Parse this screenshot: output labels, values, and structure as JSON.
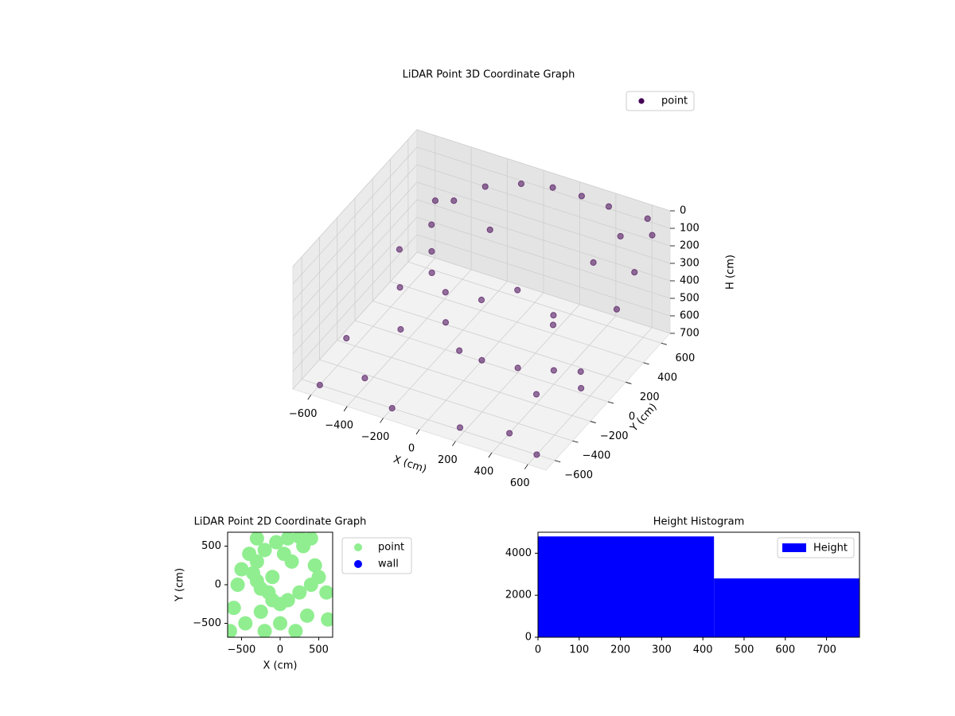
{
  "chart_data": [
    {
      "type": "scatter3d",
      "title": "LiDAR Point 3D Coordinate Graph",
      "xlabel": "X (cm)",
      "ylabel": "Y (cm)",
      "zlabel": "H (cm)",
      "xlim": [
        -700,
        700
      ],
      "ylim": [
        -700,
        700
      ],
      "zlim": [
        0,
        700
      ],
      "zinvert": true,
      "xticks": [
        {
          "value": -600,
          "label": "−600"
        },
        {
          "value": -400,
          "label": "−400"
        },
        {
          "value": -200,
          "label": "−200"
        },
        0,
        200,
        400,
        600
      ],
      "yticks": [
        {
          "value": -600,
          "label": "−600"
        },
        {
          "value": -400,
          "label": "−400"
        },
        {
          "value": -200,
          "label": "−200"
        },
        0,
        200,
        400,
        600
      ],
      "zticks": [
        0,
        100,
        200,
        300,
        400,
        500,
        600,
        700
      ],
      "grid": true,
      "legend": "upper right",
      "series": [
        {
          "name": "point",
          "color": "#440154",
          "x": [
            -300,
            -200,
            -50,
            100,
            250,
            400,
            -350,
            -300,
            -250,
            -150,
            -100,
            0,
            100,
            250,
            400,
            500,
            600,
            650,
            650,
            650,
            600,
            450,
            300,
            -600,
            -500,
            -400,
            -200,
            200,
            400,
            -650,
            -550,
            0,
            150,
            300,
            -100,
            500,
            600,
            -600,
            200,
            -300
          ],
          "y": [
            300,
            450,
            550,
            600,
            620,
            620,
            150,
            50,
            -50,
            -100,
            -200,
            -250,
            -200,
            -100,
            0,
            100,
            -100,
            200,
            400,
            600,
            650,
            650,
            650,
            -300,
            100,
            -500,
            -600,
            -650,
            -500,
            400,
            600,
            0,
            100,
            200,
            300,
            -400,
            -600,
            -600,
            400,
            -300
          ],
          "z": [
            50,
            20,
            10,
            10,
            20,
            30,
            120,
            200,
            250,
            300,
            400,
            500,
            550,
            600,
            620,
            650,
            600,
            300,
            200,
            100,
            50,
            200,
            400,
            600,
            500,
            650,
            700,
            650,
            700,
            500,
            300,
            350,
            300,
            450,
            150,
            500,
            700,
            700,
            650,
            450
          ]
        }
      ]
    },
    {
      "type": "scatter",
      "title": "LiDAR Point 2D Coordinate Graph",
      "xlabel": "X (cm)",
      "ylabel": "Y (cm)",
      "xlim": [
        -680,
        680
      ],
      "ylim": [
        -680,
        680
      ],
      "xticks": [
        {
          "value": -500,
          "label": "−500"
        },
        0,
        500
      ],
      "yticks": [
        {
          "value": -500,
          "label": "−500"
        },
        0,
        500
      ],
      "legend": "outside right",
      "series": [
        {
          "name": "point",
          "color": "#90ee90",
          "x": [
            -300,
            -200,
            -50,
            100,
            250,
            400,
            -350,
            -300,
            -250,
            -150,
            -100,
            0,
            100,
            250,
            400,
            500,
            600,
            -400,
            -500,
            -600,
            -450,
            -200,
            200,
            0,
            -300,
            350,
            150,
            -100,
            50,
            -550,
            -650,
            620,
            300,
            -250,
            450
          ],
          "y": [
            300,
            450,
            550,
            600,
            620,
            600,
            150,
            50,
            -50,
            -100,
            -200,
            -250,
            -200,
            -100,
            0,
            100,
            -100,
            400,
            200,
            -300,
            -500,
            -600,
            -600,
            -500,
            600,
            -400,
            300,
            100,
            400,
            0,
            -600,
            -450,
            500,
            -350,
            250
          ]
        },
        {
          "name": "wall",
          "color": "#0000ff",
          "x": [],
          "y": []
        }
      ]
    },
    {
      "type": "histogram",
      "title": "Height Histogram",
      "bins": [
        0,
        427,
        780
      ],
      "values": [
        4800,
        2800
      ],
      "color": "#0000ff",
      "name": "Height",
      "xlim": [
        0,
        780
      ],
      "ylim": [
        0,
        5000
      ],
      "xticks": [
        0,
        100,
        200,
        300,
        400,
        500,
        600,
        700
      ],
      "yticks": [
        0,
        2000,
        4000
      ],
      "legend": "upper right"
    }
  ]
}
